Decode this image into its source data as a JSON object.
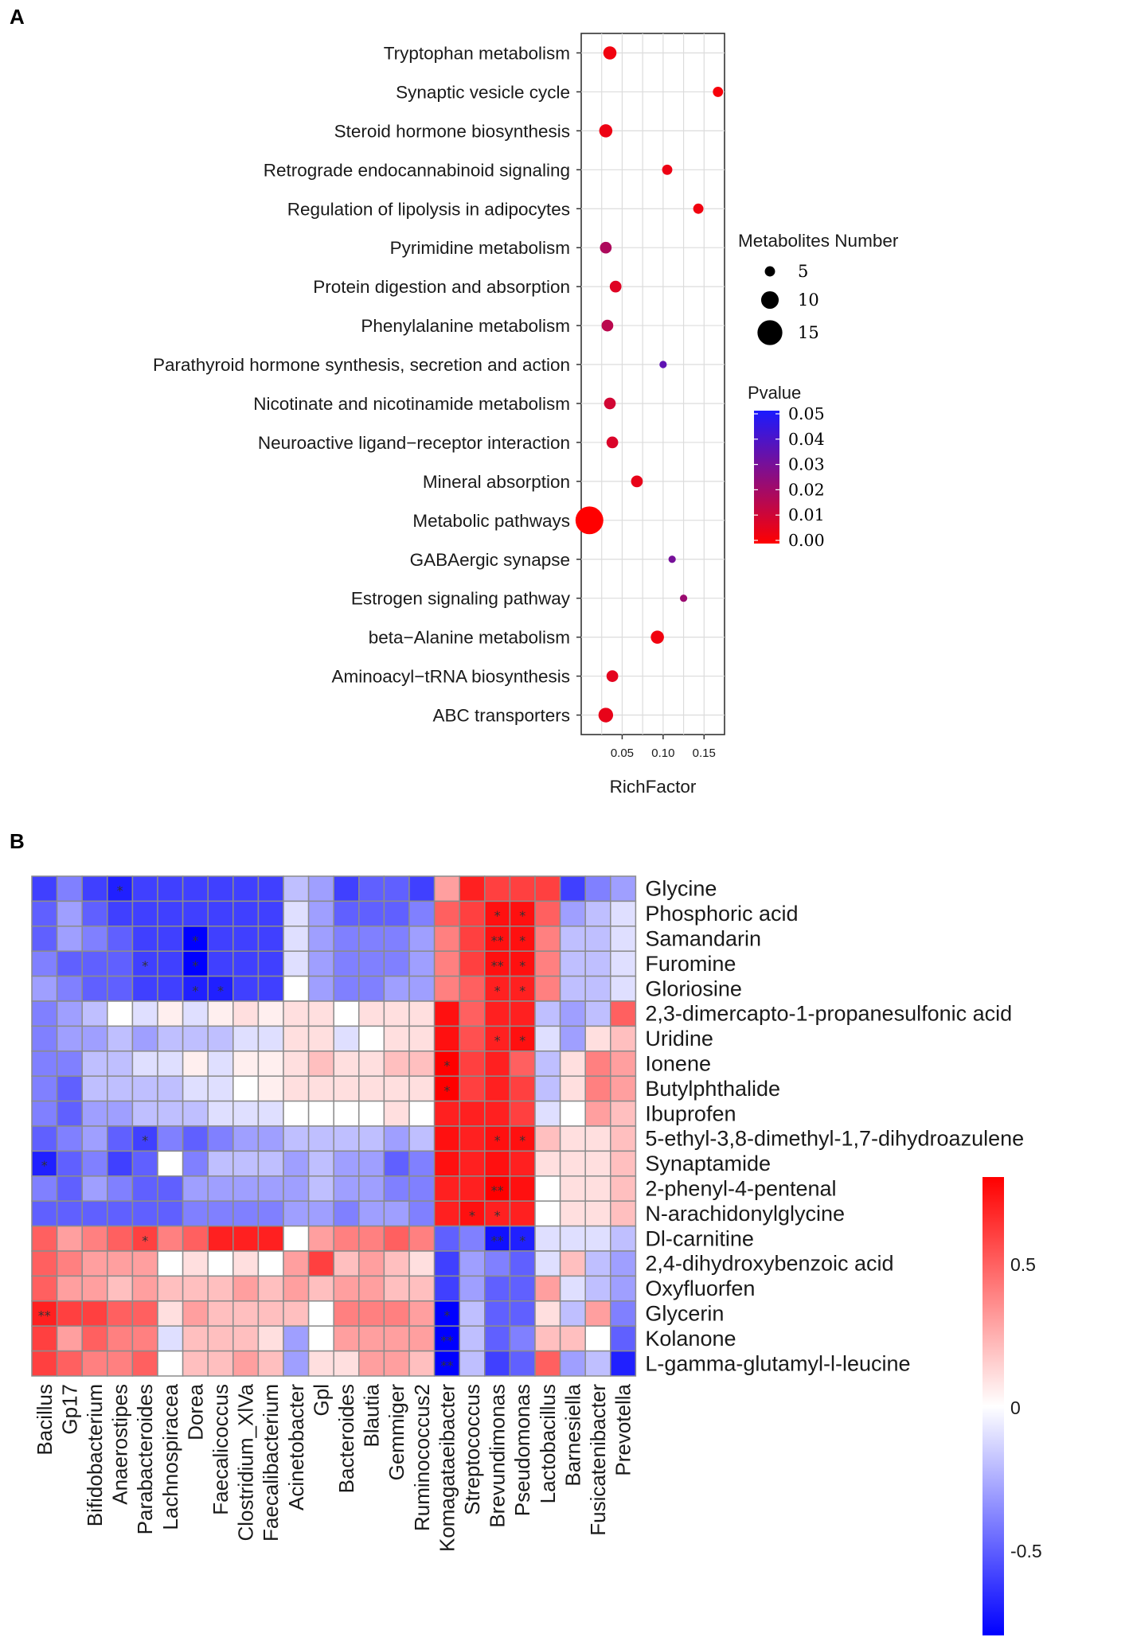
{
  "panels": {
    "a_label": "A",
    "b_label": "B"
  },
  "chart_data": [
    {
      "type": "scatter",
      "panel": "A",
      "title": "",
      "xlabel": "RichFactor",
      "ylabel": "",
      "xlim": [
        0.0,
        0.175
      ],
      "xticks": [
        0.05,
        0.1,
        0.15
      ],
      "xtick_labels": [
        "0.05",
        "0.10",
        "0.15"
      ],
      "grid": true,
      "pathways": [
        {
          "name": "Tryptophan metabolism",
          "rich": 0.035,
          "count": 7,
          "p": 0.003
        },
        {
          "name": "Synaptic vesicle cycle",
          "rich": 0.167,
          "count": 5,
          "p": 0.002
        },
        {
          "name": "Steroid hormone biosynthesis",
          "rich": 0.03,
          "count": 7,
          "p": 0.004
        },
        {
          "name": "Retrograde endocannabinoid signaling",
          "rich": 0.105,
          "count": 5,
          "p": 0.004
        },
        {
          "name": "Regulation of lipolysis in adipocytes",
          "rich": 0.143,
          "count": 5,
          "p": 0.003
        },
        {
          "name": "Pyrimidine metabolism",
          "rich": 0.03,
          "count": 6,
          "p": 0.018
        },
        {
          "name": "Protein digestion and absorption",
          "rich": 0.042,
          "count": 6,
          "p": 0.007
        },
        {
          "name": "Phenylalanine metabolism",
          "rich": 0.032,
          "count": 6,
          "p": 0.015
        },
        {
          "name": "Parathyroid hormone synthesis, secretion and action",
          "rich": 0.1,
          "count": 3,
          "p": 0.035
        },
        {
          "name": "Nicotinate and nicotinamide metabolism",
          "rich": 0.035,
          "count": 6,
          "p": 0.01
        },
        {
          "name": "Neuroactive ligand−receptor interaction",
          "rich": 0.038,
          "count": 6,
          "p": 0.008
        },
        {
          "name": "Mineral absorption",
          "rich": 0.068,
          "count": 6,
          "p": 0.005
        },
        {
          "name": "Metabolic pathways",
          "rich": 0.01,
          "count": 17,
          "p": 0.0
        },
        {
          "name": "GABAergic synapse",
          "rich": 0.111,
          "count": 3,
          "p": 0.03
        },
        {
          "name": "Estrogen signaling pathway",
          "rich": 0.125,
          "count": 3,
          "p": 0.022
        },
        {
          "name": "beta−Alanine metabolism",
          "rich": 0.093,
          "count": 7,
          "p": 0.003
        },
        {
          "name": "Aminoacyl−tRNA biosynthesis",
          "rich": 0.038,
          "count": 6,
          "p": 0.006
        },
        {
          "name": "ABC transporters",
          "rich": 0.03,
          "count": 8,
          "p": 0.005
        }
      ],
      "size_legend": {
        "title": "Metabolites Number",
        "values": [
          5,
          10,
          15
        ],
        "labels": [
          "5",
          "10",
          "15"
        ]
      },
      "color_legend": {
        "title": "Pvalue",
        "range": [
          0.0,
          0.05
        ],
        "ticks": [
          "0.05",
          "0.04",
          "0.03",
          "0.02",
          "0.01",
          "0.00"
        ],
        "low_color": "#ff0000",
        "high_color": "#1a1aff"
      }
    },
    {
      "type": "heatmap",
      "panel": "B",
      "title": "",
      "rows": [
        "Glycine",
        "Phosphoric acid",
        "Samandarin",
        "Furomine",
        "Gloriosine",
        "2,3-dimercapto-1-propanesulfonic acid",
        "Uridine",
        "Ionene",
        "Butylphthalide",
        "Ibuprofen",
        "5-ethyl-3,8-dimethyl-1,7-dihydroazulene",
        "Synaptamide",
        "2-phenyl-4-pentenal",
        "N-arachidonylglycine",
        "Dl-carnitine",
        "2,4-dihydroxybenzoic acid",
        "Oxyfluorfen",
        "Glycerin",
        "Kolanone",
        "L-gamma-glutamyl-l-leucine"
      ],
      "columns": [
        "Bacillus",
        "Gp17",
        "Bifidobacterium",
        "Anaerostipes",
        "Parabacteroides",
        "Lachnospiracea",
        "Dorea",
        "Faecalicoccus",
        "Clostridium_XlVa",
        "Faecalibacterium",
        "Acinetobacter",
        "Gpl",
        "Bacteroides",
        "Blautia",
        "Gemmiger",
        "Ruminococcus2",
        "Komagataeibacter",
        "Streptococcus",
        "Brevundimonas",
        "Pseudomonas",
        "Lactobacillus",
        "Barnesiella",
        "Fusicatenibacter",
        "Prevotella"
      ],
      "values": [
        [
          -0.6,
          -0.4,
          -0.6,
          -0.7,
          -0.6,
          -0.6,
          -0.6,
          -0.6,
          -0.6,
          -0.6,
          -0.2,
          -0.3,
          -0.6,
          -0.5,
          -0.5,
          -0.6,
          0.3,
          0.7,
          0.6,
          0.6,
          0.6,
          -0.6,
          -0.4,
          -0.3
        ],
        [
          -0.5,
          -0.3,
          -0.5,
          -0.6,
          -0.6,
          -0.6,
          -0.6,
          -0.6,
          -0.6,
          -0.6,
          -0.1,
          -0.3,
          -0.5,
          -0.5,
          -0.5,
          -0.4,
          0.5,
          0.6,
          0.75,
          0.75,
          0.5,
          -0.3,
          -0.2,
          -0.1
        ],
        [
          -0.5,
          -0.3,
          -0.4,
          -0.5,
          -0.6,
          -0.6,
          -0.8,
          -0.6,
          -0.6,
          -0.6,
          -0.1,
          -0.3,
          -0.4,
          -0.4,
          -0.4,
          -0.3,
          0.4,
          0.6,
          0.75,
          0.75,
          0.4,
          -0.2,
          -0.2,
          -0.1
        ],
        [
          -0.4,
          -0.5,
          -0.5,
          -0.5,
          -0.6,
          -0.6,
          -0.8,
          -0.6,
          -0.6,
          -0.6,
          -0.1,
          -0.3,
          -0.4,
          -0.4,
          -0.4,
          -0.3,
          0.4,
          0.6,
          0.75,
          0.75,
          0.4,
          -0.2,
          -0.2,
          -0.1
        ],
        [
          -0.3,
          -0.4,
          -0.5,
          -0.5,
          -0.6,
          -0.6,
          -0.7,
          -0.7,
          -0.6,
          -0.6,
          0.0,
          -0.3,
          -0.4,
          -0.4,
          -0.3,
          -0.3,
          0.4,
          0.5,
          0.7,
          0.7,
          0.4,
          -0.2,
          -0.2,
          -0.1
        ],
        [
          -0.4,
          -0.3,
          -0.2,
          0.0,
          -0.1,
          0.05,
          -0.1,
          0.05,
          0.1,
          0.05,
          0.1,
          0.1,
          0.0,
          0.1,
          0.1,
          0.1,
          0.75,
          0.5,
          0.7,
          0.7,
          -0.2,
          -0.3,
          -0.2,
          0.5
        ],
        [
          -0.4,
          -0.3,
          -0.3,
          -0.2,
          -0.3,
          -0.2,
          -0.2,
          -0.2,
          -0.1,
          -0.1,
          0.1,
          0.1,
          -0.1,
          0.0,
          0.1,
          0.1,
          0.75,
          0.55,
          0.7,
          0.75,
          -0.1,
          -0.3,
          0.1,
          0.2
        ],
        [
          -0.4,
          -0.4,
          -0.2,
          -0.2,
          -0.1,
          -0.1,
          0.05,
          -0.1,
          0.05,
          0.05,
          0.1,
          0.2,
          0.1,
          0.1,
          0.2,
          0.2,
          0.8,
          0.6,
          0.7,
          0.5,
          -0.2,
          0.1,
          0.4,
          0.3
        ],
        [
          -0.4,
          -0.5,
          -0.2,
          -0.2,
          -0.2,
          -0.2,
          -0.1,
          -0.1,
          0.0,
          0.05,
          0.1,
          0.1,
          0.1,
          0.1,
          0.1,
          0.1,
          0.8,
          0.6,
          0.7,
          0.6,
          -0.2,
          0.1,
          0.4,
          0.3
        ],
        [
          -0.4,
          -0.5,
          -0.3,
          -0.3,
          -0.2,
          -0.2,
          -0.2,
          -0.1,
          -0.1,
          -0.1,
          0.0,
          0.0,
          0.0,
          0.0,
          0.1,
          0.0,
          0.7,
          0.7,
          0.7,
          0.6,
          -0.1,
          0.0,
          0.3,
          0.2
        ],
        [
          -0.5,
          -0.4,
          -0.3,
          -0.5,
          -0.6,
          -0.4,
          -0.5,
          -0.4,
          -0.3,
          -0.3,
          -0.2,
          -0.2,
          -0.2,
          -0.2,
          -0.3,
          -0.2,
          0.75,
          0.7,
          0.75,
          0.75,
          0.2,
          0.1,
          0.1,
          0.2
        ],
        [
          -0.7,
          -0.5,
          -0.4,
          -0.6,
          -0.5,
          0.0,
          -0.4,
          -0.2,
          -0.2,
          -0.2,
          -0.3,
          -0.2,
          -0.3,
          -0.3,
          -0.5,
          -0.4,
          0.75,
          0.7,
          0.75,
          0.7,
          0.1,
          0.1,
          0.1,
          0.2
        ],
        [
          -0.4,
          -0.5,
          -0.3,
          -0.4,
          -0.5,
          -0.5,
          -0.3,
          -0.3,
          -0.3,
          -0.3,
          -0.3,
          -0.2,
          -0.3,
          -0.3,
          -0.4,
          -0.4,
          0.7,
          0.7,
          0.8,
          0.75,
          0.0,
          0.1,
          0.1,
          0.2
        ],
        [
          -0.5,
          -0.5,
          -0.5,
          -0.5,
          -0.5,
          -0.5,
          -0.4,
          -0.4,
          -0.4,
          -0.4,
          -0.3,
          -0.3,
          -0.4,
          -0.3,
          -0.3,
          -0.4,
          0.7,
          0.75,
          0.7,
          0.7,
          0.0,
          0.1,
          0.1,
          0.2
        ],
        [
          0.5,
          0.3,
          0.4,
          0.5,
          0.6,
          0.4,
          0.5,
          0.7,
          0.7,
          0.7,
          0.0,
          0.3,
          0.4,
          0.4,
          0.5,
          0.4,
          -0.5,
          -0.4,
          -0.75,
          -0.7,
          -0.1,
          -0.1,
          -0.1,
          -0.2
        ],
        [
          0.5,
          0.4,
          0.3,
          0.3,
          0.3,
          0.0,
          0.1,
          0.0,
          0.1,
          0.0,
          0.3,
          0.6,
          0.2,
          0.3,
          0.2,
          0.1,
          -0.6,
          -0.3,
          -0.4,
          -0.5,
          -0.1,
          0.2,
          -0.2,
          -0.3
        ],
        [
          0.5,
          0.3,
          0.3,
          0.2,
          0.3,
          0.2,
          0.2,
          0.2,
          0.3,
          0.2,
          0.3,
          0.2,
          0.3,
          0.3,
          0.2,
          0.2,
          -0.6,
          -0.3,
          -0.5,
          -0.5,
          0.3,
          -0.1,
          -0.2,
          -0.3
        ],
        [
          0.7,
          0.6,
          0.6,
          0.5,
          0.5,
          0.1,
          0.3,
          0.2,
          0.2,
          0.2,
          0.2,
          0.0,
          0.4,
          0.4,
          0.4,
          0.3,
          -0.8,
          -0.2,
          -0.5,
          -0.5,
          0.1,
          -0.2,
          0.3,
          -0.4
        ],
        [
          0.6,
          0.3,
          0.5,
          0.4,
          0.4,
          -0.1,
          0.2,
          0.2,
          0.2,
          0.1,
          -0.3,
          0.0,
          0.3,
          0.3,
          0.3,
          0.3,
          -0.8,
          -0.2,
          -0.5,
          -0.4,
          0.2,
          0.2,
          0.0,
          -0.5
        ],
        [
          0.6,
          0.5,
          0.4,
          0.4,
          0.5,
          0.0,
          0.2,
          0.2,
          0.3,
          0.2,
          -0.3,
          0.1,
          0.1,
          0.3,
          0.3,
          0.2,
          -0.8,
          -0.2,
          -0.6,
          -0.5,
          0.5,
          -0.3,
          -0.2,
          -0.7
        ]
      ],
      "stars": [
        {
          "row": 0,
          "col": 3,
          "text": "*"
        },
        {
          "row": 1,
          "col": 18,
          "text": "*"
        },
        {
          "row": 1,
          "col": 19,
          "text": "*"
        },
        {
          "row": 2,
          "col": 6,
          "text": "*"
        },
        {
          "row": 2,
          "col": 18,
          "text": "**"
        },
        {
          "row": 2,
          "col": 19,
          "text": "*"
        },
        {
          "row": 3,
          "col": 4,
          "text": "*"
        },
        {
          "row": 3,
          "col": 6,
          "text": "*"
        },
        {
          "row": 3,
          "col": 18,
          "text": "**"
        },
        {
          "row": 3,
          "col": 19,
          "text": "*"
        },
        {
          "row": 4,
          "col": 6,
          "text": "*"
        },
        {
          "row": 4,
          "col": 7,
          "text": "*"
        },
        {
          "row": 4,
          "col": 18,
          "text": "*"
        },
        {
          "row": 4,
          "col": 19,
          "text": "*"
        },
        {
          "row": 6,
          "col": 18,
          "text": "*"
        },
        {
          "row": 6,
          "col": 19,
          "text": "*"
        },
        {
          "row": 7,
          "col": 16,
          "text": "*"
        },
        {
          "row": 8,
          "col": 16,
          "text": "*"
        },
        {
          "row": 10,
          "col": 4,
          "text": "*"
        },
        {
          "row": 10,
          "col": 18,
          "text": "*"
        },
        {
          "row": 10,
          "col": 19,
          "text": "*"
        },
        {
          "row": 11,
          "col": 0,
          "text": "*"
        },
        {
          "row": 12,
          "col": 18,
          "text": "**"
        },
        {
          "row": 13,
          "col": 17,
          "text": "*"
        },
        {
          "row": 13,
          "col": 18,
          "text": "*"
        },
        {
          "row": 14,
          "col": 4,
          "text": "*"
        },
        {
          "row": 14,
          "col": 18,
          "text": "**"
        },
        {
          "row": 14,
          "col": 19,
          "text": "*"
        },
        {
          "row": 17,
          "col": 0,
          "text": "**"
        },
        {
          "row": 17,
          "col": 16,
          "text": "*"
        },
        {
          "row": 18,
          "col": 16,
          "text": "**"
        },
        {
          "row": 19,
          "col": 16,
          "text": "**"
        }
      ],
      "color_legend": {
        "range": [
          -0.8,
          0.8
        ],
        "ticks": [
          0.5,
          0,
          -0.5
        ],
        "tick_labels": [
          "0.5",
          "0",
          "-0.5"
        ],
        "low_color": "#0000ff",
        "mid_color": "#ffffff",
        "high_color": "#ff0000"
      }
    }
  ]
}
